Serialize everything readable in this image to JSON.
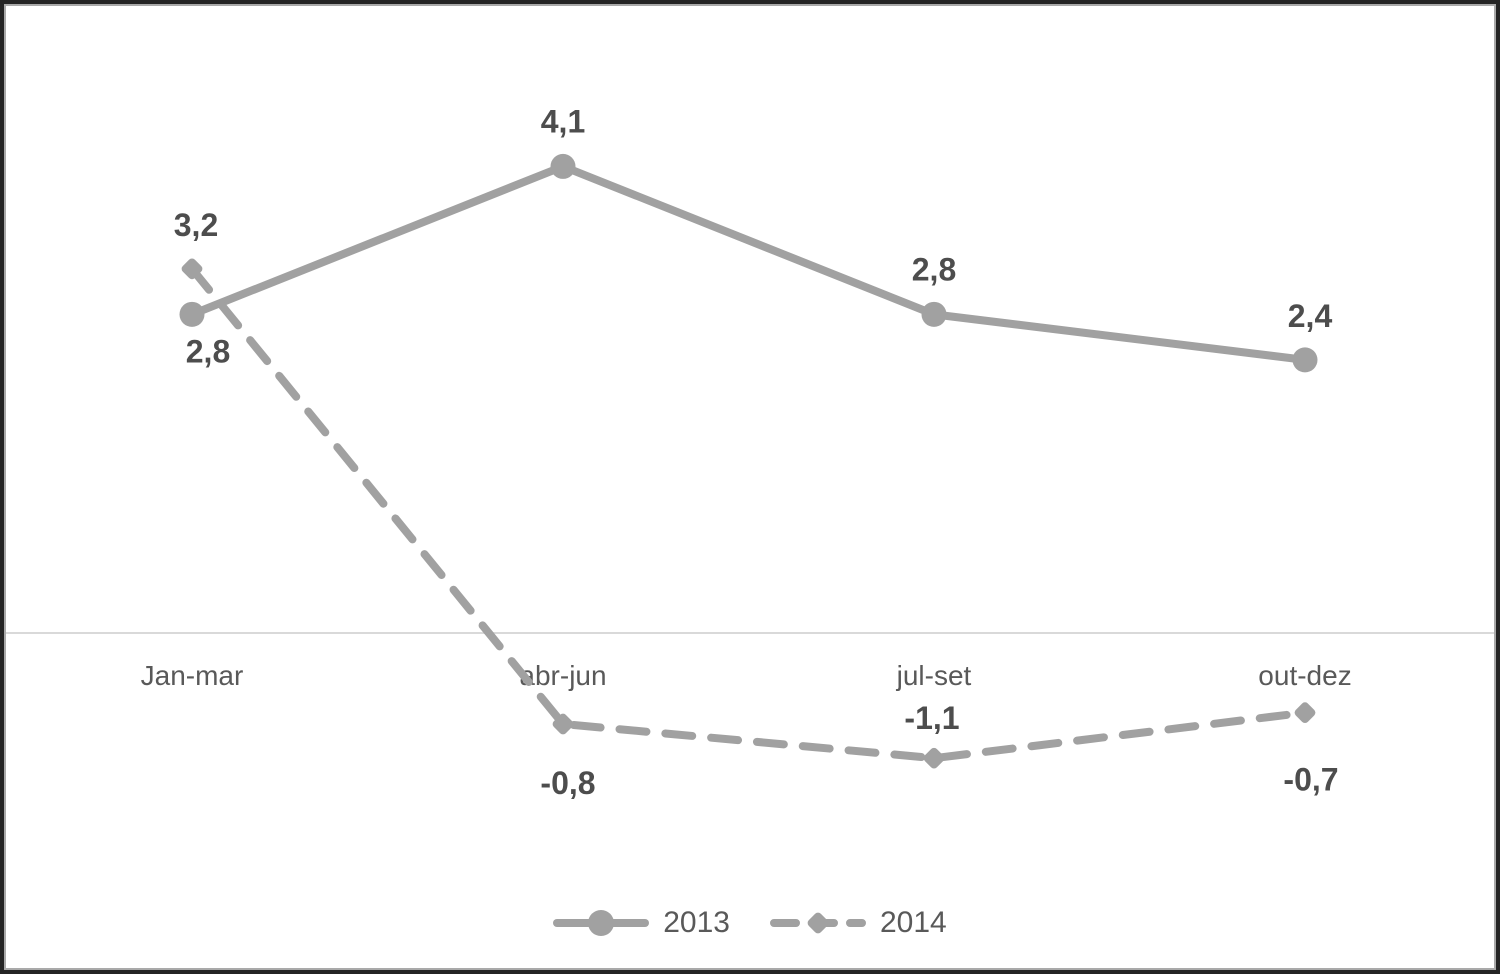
{
  "chart_data": {
    "type": "line",
    "title": "",
    "xlabel": "",
    "ylabel": "",
    "categories": [
      "Jan-mar",
      "abr-jun",
      "jul-set",
      "out-dez"
    ],
    "series": [
      {
        "name": "2013",
        "values": [
          2.8,
          4.1,
          2.8,
          2.4
        ],
        "labels": [
          "2,8",
          "4,1",
          "2,8",
          "2,4"
        ],
        "line_style": "solid",
        "marker": "circle"
      },
      {
        "name": "2014",
        "values": [
          3.2,
          -0.8,
          -1.1,
          -0.7
        ],
        "labels": [
          "3,2",
          "-0,8",
          "-1,1",
          "-0,7"
        ],
        "line_style": "dashed",
        "marker": "diamond"
      }
    ],
    "ylim": [
      -2,
      5
    ],
    "grid": "off",
    "axes": "zero baseline only, no y-axis ticks",
    "legend_position": "bottom-center",
    "label_positions": {
      "2013": [
        "below",
        "above",
        "above",
        "above"
      ],
      "2014": [
        "above",
        "below",
        "above",
        "below"
      ]
    }
  },
  "colors": {
    "series_line": "#a1a1a1",
    "marker": "#a1a1a1",
    "data_label": "#4d4d4d",
    "axis_label": "#595959",
    "axis_line": "#d9d9d9",
    "legend_text": "#595959",
    "outer_border": "#242424",
    "inner_border": "#a9a9a9",
    "background": "#ffffff"
  },
  "legend": {
    "items": [
      {
        "label": "2013"
      },
      {
        "label": "2014"
      }
    ]
  }
}
